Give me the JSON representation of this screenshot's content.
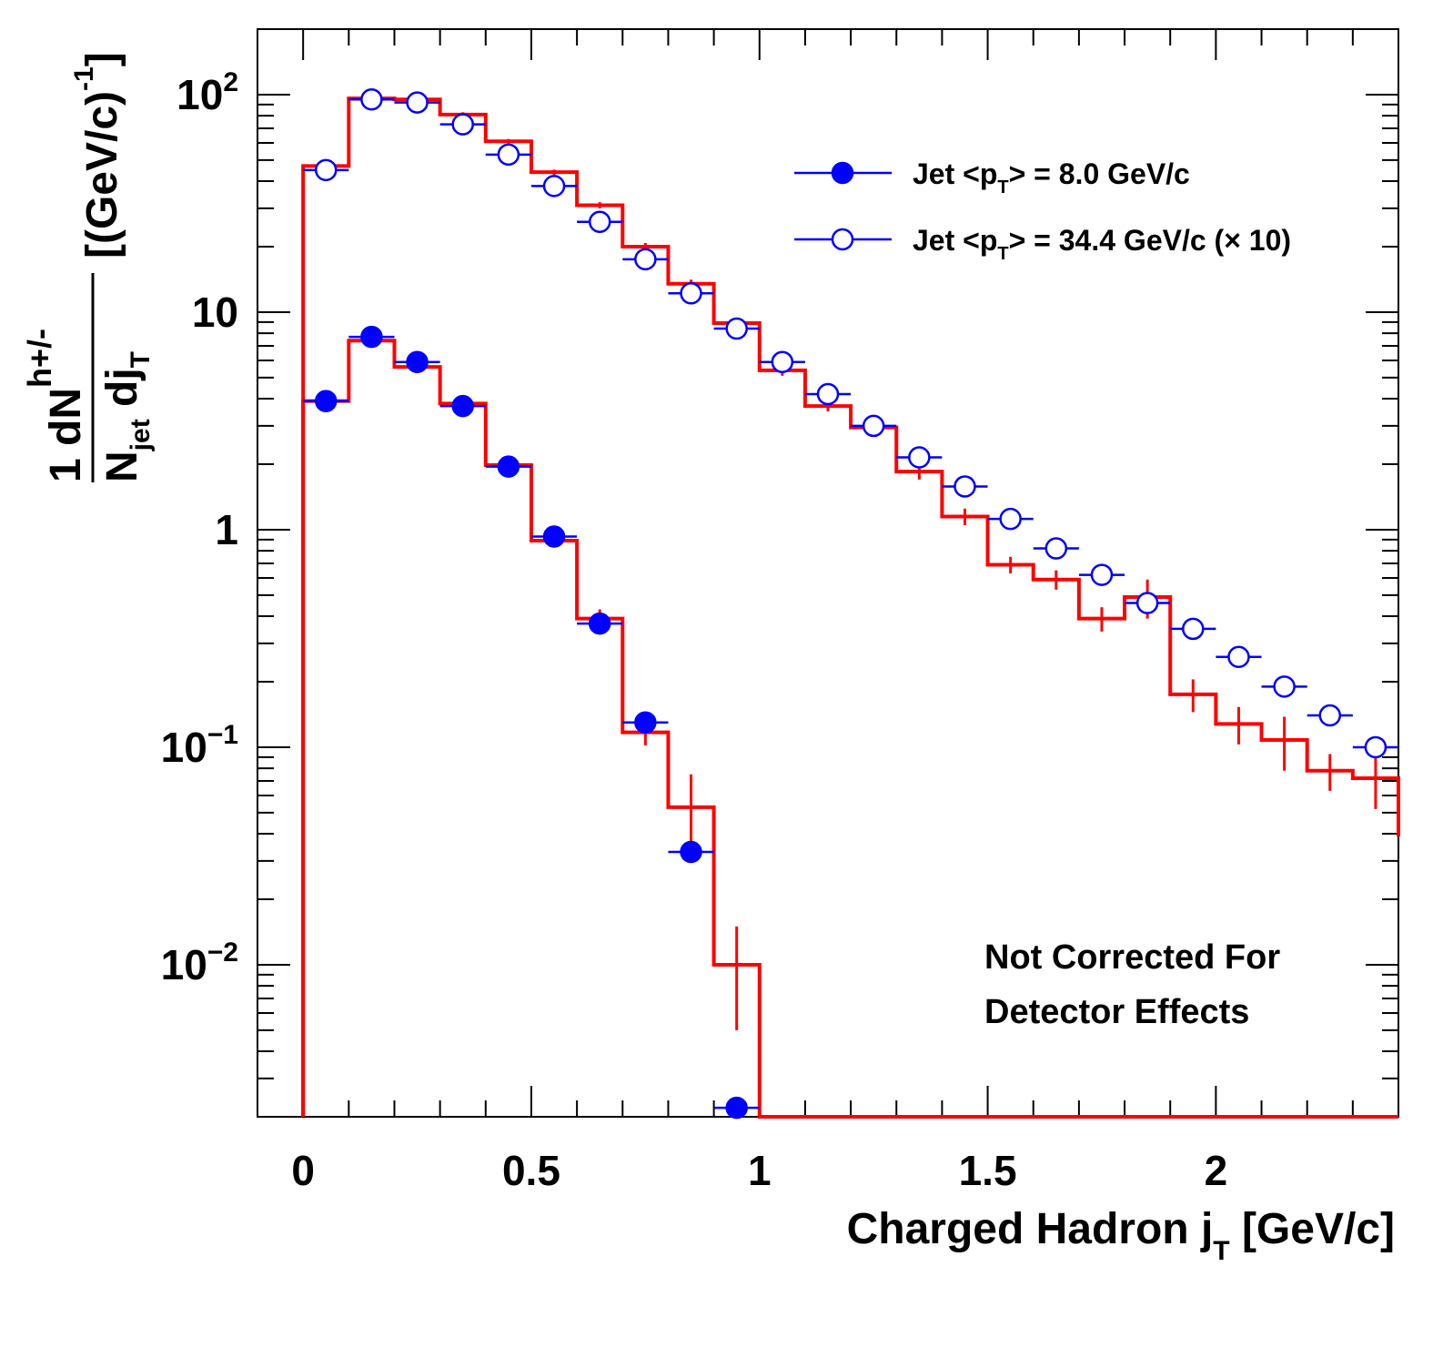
{
  "chart_data": {
    "type": "line",
    "title": "",
    "xlabel": {
      "main": "Charged Hadron j",
      "sub": "T",
      "tail": " [GeV/c]"
    },
    "ylabel": {
      "frac_num": "1 dN",
      "frac_num_sup": "h+/-",
      "frac_den": "N",
      "frac_den_sub": "jet",
      "frac_den_tail": " dj",
      "frac_den_tail_sub": "T",
      "unit": "[(GeV/c)",
      "unit_sup": "-1",
      "unit_close": "]"
    },
    "xlim": [
      -0.1,
      2.4
    ],
    "ylim": [
      0.002,
      200
    ],
    "yscale": "log",
    "x_ticks": [
      {
        "value": 0,
        "label": "0"
      },
      {
        "value": 0.5,
        "label": "0.5"
      },
      {
        "value": 1,
        "label": "1"
      },
      {
        "value": 1.5,
        "label": "1.5"
      },
      {
        "value": 2,
        "label": "2"
      }
    ],
    "y_ticks": [
      {
        "value": 100,
        "base": "10",
        "exp": "2"
      },
      {
        "value": 10,
        "base": "10",
        "exp": ""
      },
      {
        "value": 1,
        "base": "1",
        "exp": ""
      },
      {
        "value": 0.1,
        "base": "10",
        "exp": "−1"
      },
      {
        "value": 0.01,
        "base": "10",
        "exp": "−2"
      }
    ],
    "bin_edges": [
      0,
      0.1,
      0.2,
      0.3,
      0.4,
      0.5,
      0.6,
      0.7,
      0.8,
      0.9,
      1.0,
      1.1,
      1.2,
      1.3,
      1.4,
      1.5,
      1.6,
      1.7,
      1.8,
      1.9,
      2.0,
      2.1,
      2.2,
      2.3,
      2.4
    ],
    "legend_position": "top-right",
    "series": [
      {
        "name": "Jet <p",
        "name_sub": "T",
        "name_tail": "> = 8.0 GeV/c",
        "marker": "filled-circle",
        "color": "#0000ff",
        "x": [
          0.05,
          0.15,
          0.25,
          0.35,
          0.45,
          0.55,
          0.65,
          0.75,
          0.85,
          0.95
        ],
        "y": [
          3.9,
          7.7,
          5.9,
          3.7,
          1.95,
          0.93,
          0.37,
          0.13,
          0.033,
          0.0022
        ]
      },
      {
        "name": "Jet <p",
        "name_sub": "T",
        "name_tail": "> = 34.4 GeV/c (× 10)",
        "marker": "open-circle",
        "color": "#0000ff",
        "x": [
          0.05,
          0.15,
          0.25,
          0.35,
          0.45,
          0.55,
          0.65,
          0.75,
          0.85,
          0.95,
          1.05,
          1.15,
          1.25,
          1.35,
          1.45,
          1.55,
          1.65,
          1.75,
          1.85,
          1.95,
          2.05,
          2.15,
          2.25,
          2.35
        ],
        "y": [
          45,
          95,
          92,
          73,
          53,
          38,
          26,
          17.5,
          12.2,
          8.4,
          5.9,
          4.2,
          3.0,
          2.15,
          1.58,
          1.12,
          0.82,
          0.62,
          0.46,
          0.35,
          0.26,
          0.19,
          0.14,
          0.1
        ]
      }
    ],
    "histograms": [
      {
        "name": "",
        "color": "#ff0000",
        "values": [
          3.9,
          7.4,
          5.6,
          3.8,
          1.98,
          0.89,
          0.39,
          0.117,
          0.053,
          0.01,
          0.0018
        ],
        "errors": [
          0.2,
          0.3,
          0.25,
          0.15,
          0.1,
          0.06,
          0.04,
          0.015,
          0.022,
          0.005,
          0
        ]
      },
      {
        "name": "",
        "color": "#ff0000",
        "values": [
          47,
          96,
          95,
          81,
          61,
          44,
          31,
          20,
          13.5,
          8.9,
          5.4,
          3.7,
          2.95,
          1.85,
          1.15,
          0.69,
          0.59,
          0.39,
          0.49,
          0.175,
          0.128,
          0.108,
          0.078,
          0.072
        ],
        "errors": [
          1.5,
          2,
          2,
          2,
          1.5,
          1.2,
          1,
          0.8,
          0.6,
          0.5,
          0.3,
          0.2,
          0.2,
          0.15,
          0.1,
          0.06,
          0.06,
          0.05,
          0.1,
          0.03,
          0.025,
          0.03,
          0.015,
          0.02
        ]
      }
    ],
    "annotation": [
      "Not Corrected For",
      "Detector Effects"
    ]
  }
}
